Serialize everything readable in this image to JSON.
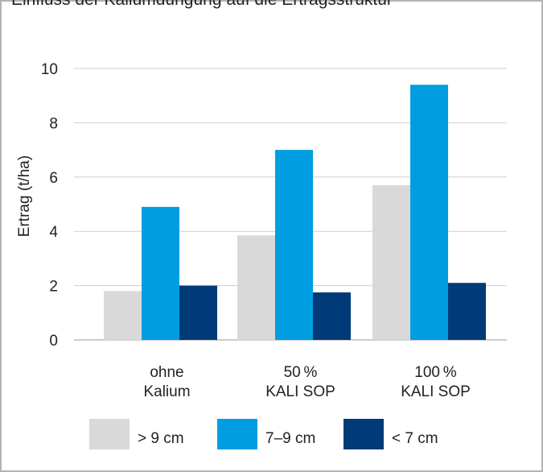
{
  "caption": "Einfluss der Kaliumdüngung auf die Ertragsstruktur",
  "chart_data": {
    "type": "bar",
    "ylabel": "Ertrag (t/ha)",
    "ylim": [
      0,
      10
    ],
    "yticks": [
      0,
      2,
      4,
      6,
      8,
      10
    ],
    "grid": true,
    "legend_position": "bottom",
    "categories": [
      [
        "ohne",
        "Kalium"
      ],
      [
        "50 %",
        "KALI SOP"
      ],
      [
        "100 %",
        "KALI SOP"
      ]
    ],
    "series": [
      {
        "name": "> 9 cm",
        "color": "#d9d9da",
        "values": [
          1.8,
          3.85,
          5.7
        ]
      },
      {
        "name": "7–9 cm",
        "color": "#009ee0",
        "values": [
          4.9,
          7.0,
          9.4
        ]
      },
      {
        "name": "< 7 cm",
        "color": "#003a79",
        "values": [
          2.0,
          1.75,
          2.1
        ]
      }
    ]
  }
}
